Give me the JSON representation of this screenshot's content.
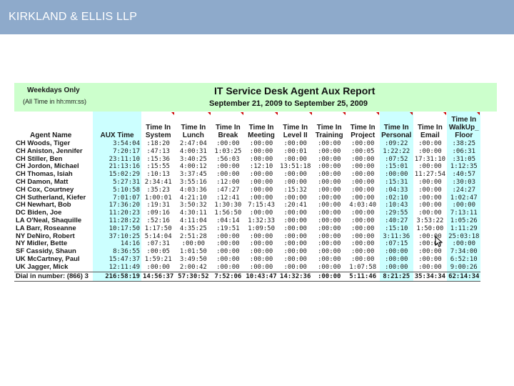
{
  "header": {
    "company": "KIRKLAND & ELLIS LLP"
  },
  "report": {
    "note_line1": "Weekdays Only",
    "note_line2": "(All Time in hh:mm:ss)",
    "title": "IT Service Desk Agent Aux Report",
    "dates": "September 21, 2009 to September 25, 2009",
    "columns": [
      "Agent Name",
      "AUX Time",
      "Time In System",
      "Time In Lunch",
      "Time In Break",
      "Time In Meeting",
      "Time In Level II",
      "Time In Training",
      "Time In Project",
      "Time In Personal",
      "Time In Email",
      "Time In WalkUp_ Floor"
    ],
    "rows": [
      [
        "CH Woods, Tiger",
        "3:54:04",
        ":18:20",
        "2:47:04",
        ":00:00",
        ":00:00",
        ":00:00",
        ":00:00",
        ":00:00",
        ":09:22",
        ":00:00",
        ":38:25"
      ],
      [
        "CH Aniston, Jennifer",
        "7:20:17",
        ":47:13",
        "4:00:31",
        "1:03:25",
        ":00:00",
        ":00:01",
        ":00:00",
        ":00:05",
        "1:22:22",
        ":00:00",
        ":06:31"
      ],
      [
        "CH Stiller, Ben",
        "23:11:10",
        ":15:36",
        "3:40:25",
        ":56:03",
        ":00:00",
        ":00:00",
        ":00:00",
        ":00:00",
        ":07:52",
        "17:31:10",
        ":31:05"
      ],
      [
        "CH Jordon, Michael",
        "21:13:16",
        ":15:55",
        "4:00:12",
        ":00:00",
        ":12:10",
        "13:51:18",
        ":00:00",
        ":00:00",
        ":15:01",
        ":00:00",
        "1:12:35"
      ],
      [
        "CH Thomas, Isiah",
        "15:02:29",
        ":10:13",
        "3:37:45",
        ":00:00",
        ":00:00",
        ":00:00",
        ":00:00",
        ":00:00",
        ":00:00",
        "11:27:54",
        ":40:57"
      ],
      [
        "CH Damon, Matt",
        "5:27:31",
        "2:34:41",
        "3:55:16",
        ":12:00",
        ":00:00",
        ":00:00",
        ":00:00",
        ":00:00",
        ":15:31",
        ":00:00",
        ":30:03"
      ],
      [
        "CH Cox, Courtney",
        "5:10:58",
        ":35:23",
        "4:03:36",
        ":47:27",
        ":00:00",
        ":15:32",
        ":00:00",
        ":00:00",
        ":04:33",
        ":00:00",
        ":24:27"
      ],
      [
        "CH Sutherland, Kiefer",
        "7:01:07",
        "1:00:01",
        "4:21:10",
        ":12:41",
        ":00:00",
        ":00:00",
        ":00:00",
        ":00:00",
        ":02:10",
        ":00:00",
        "1:02:47"
      ],
      [
        "CH Newhart, Bob",
        "17:36:20",
        ":19:31",
        "3:50:32",
        "1:30:30",
        "7:15:43",
        ":20:41",
        ":00:00",
        "4:03:40",
        ":10:43",
        ":00:00",
        ":00:00"
      ],
      [
        "DC Biden, Joe",
        "11:20:23",
        ":09:16",
        "4:30:11",
        "1:56:50",
        ":00:00",
        ":00:00",
        ":00:00",
        ":00:00",
        ":29:55",
        ":00:00",
        "7:13:11"
      ],
      [
        "LA O'Neal, Shaquille",
        "11:28:22",
        ":52:16",
        "4:11:04",
        ":04:14",
        "1:32:33",
        ":00:00",
        ":00:00",
        ":00:00",
        ":40:27",
        "3:53:22",
        "1:05:26"
      ],
      [
        "LA Barr, Roseanne",
        "10:17:50",
        "1:17:50",
        "4:35:25",
        ":19:51",
        "1:09:50",
        ":00:00",
        ":00:00",
        ":00:00",
        ":15:10",
        "1:50:00",
        "1:11:29"
      ],
      [
        "NY DeNiro, Robert",
        "37:10:25",
        "5:14:04",
        "2:51:28",
        ":00:00",
        ":00:00",
        ":00:00",
        ":00:00",
        ":00:00",
        "3:11:36",
        ":00:00",
        "25:03:18"
      ],
      [
        "NY Midler, Bette",
        "14:16",
        ":07:31",
        ":00:00",
        ":00:00",
        ":00:00",
        ":00:00",
        ":00:00",
        ":00:00",
        ":07:15",
        ":00:00",
        ":00:00"
      ],
      [
        "SF Cassidy, Shaun",
        "8:36:55",
        ":00:05",
        "1:01:50",
        ":00:00",
        ":00:00",
        ":00:00",
        ":00:00",
        ":00:00",
        ":00:00",
        ":00:00",
        "7:34:00"
      ],
      [
        "UK McCartney, Paul",
        "15:47:37",
        "1:59:21",
        "3:49:50",
        ":00:00",
        ":00:00",
        ":00:00",
        ":00:00",
        ":00:00",
        ":00:00",
        ":00:00",
        "6:52:10"
      ],
      [
        "UK Jagger, Mick",
        "12:11:49",
        ":00:00",
        "2:00:42",
        ":00:00",
        ":00:00",
        ":00:00",
        ":00:00",
        "1:07:58",
        ":00:00",
        ":00:00",
        "9:00:26"
      ]
    ],
    "totals": [
      "Dial in number: (866) 3",
      "216:58:19",
      "14:56:37",
      "57:30:52",
      "7:52:06",
      "10:43:47",
      "14:32:36",
      ":00:00",
      "5:11:46",
      "8:21:25",
      "35:34:34",
      "62:14:34"
    ]
  },
  "colors": {
    "topbar": "#8eaacb",
    "header_band": "#ccffcc",
    "cyan_column": "#ccffff"
  },
  "icons": {
    "cursor": "mouse-pointer-icon"
  }
}
